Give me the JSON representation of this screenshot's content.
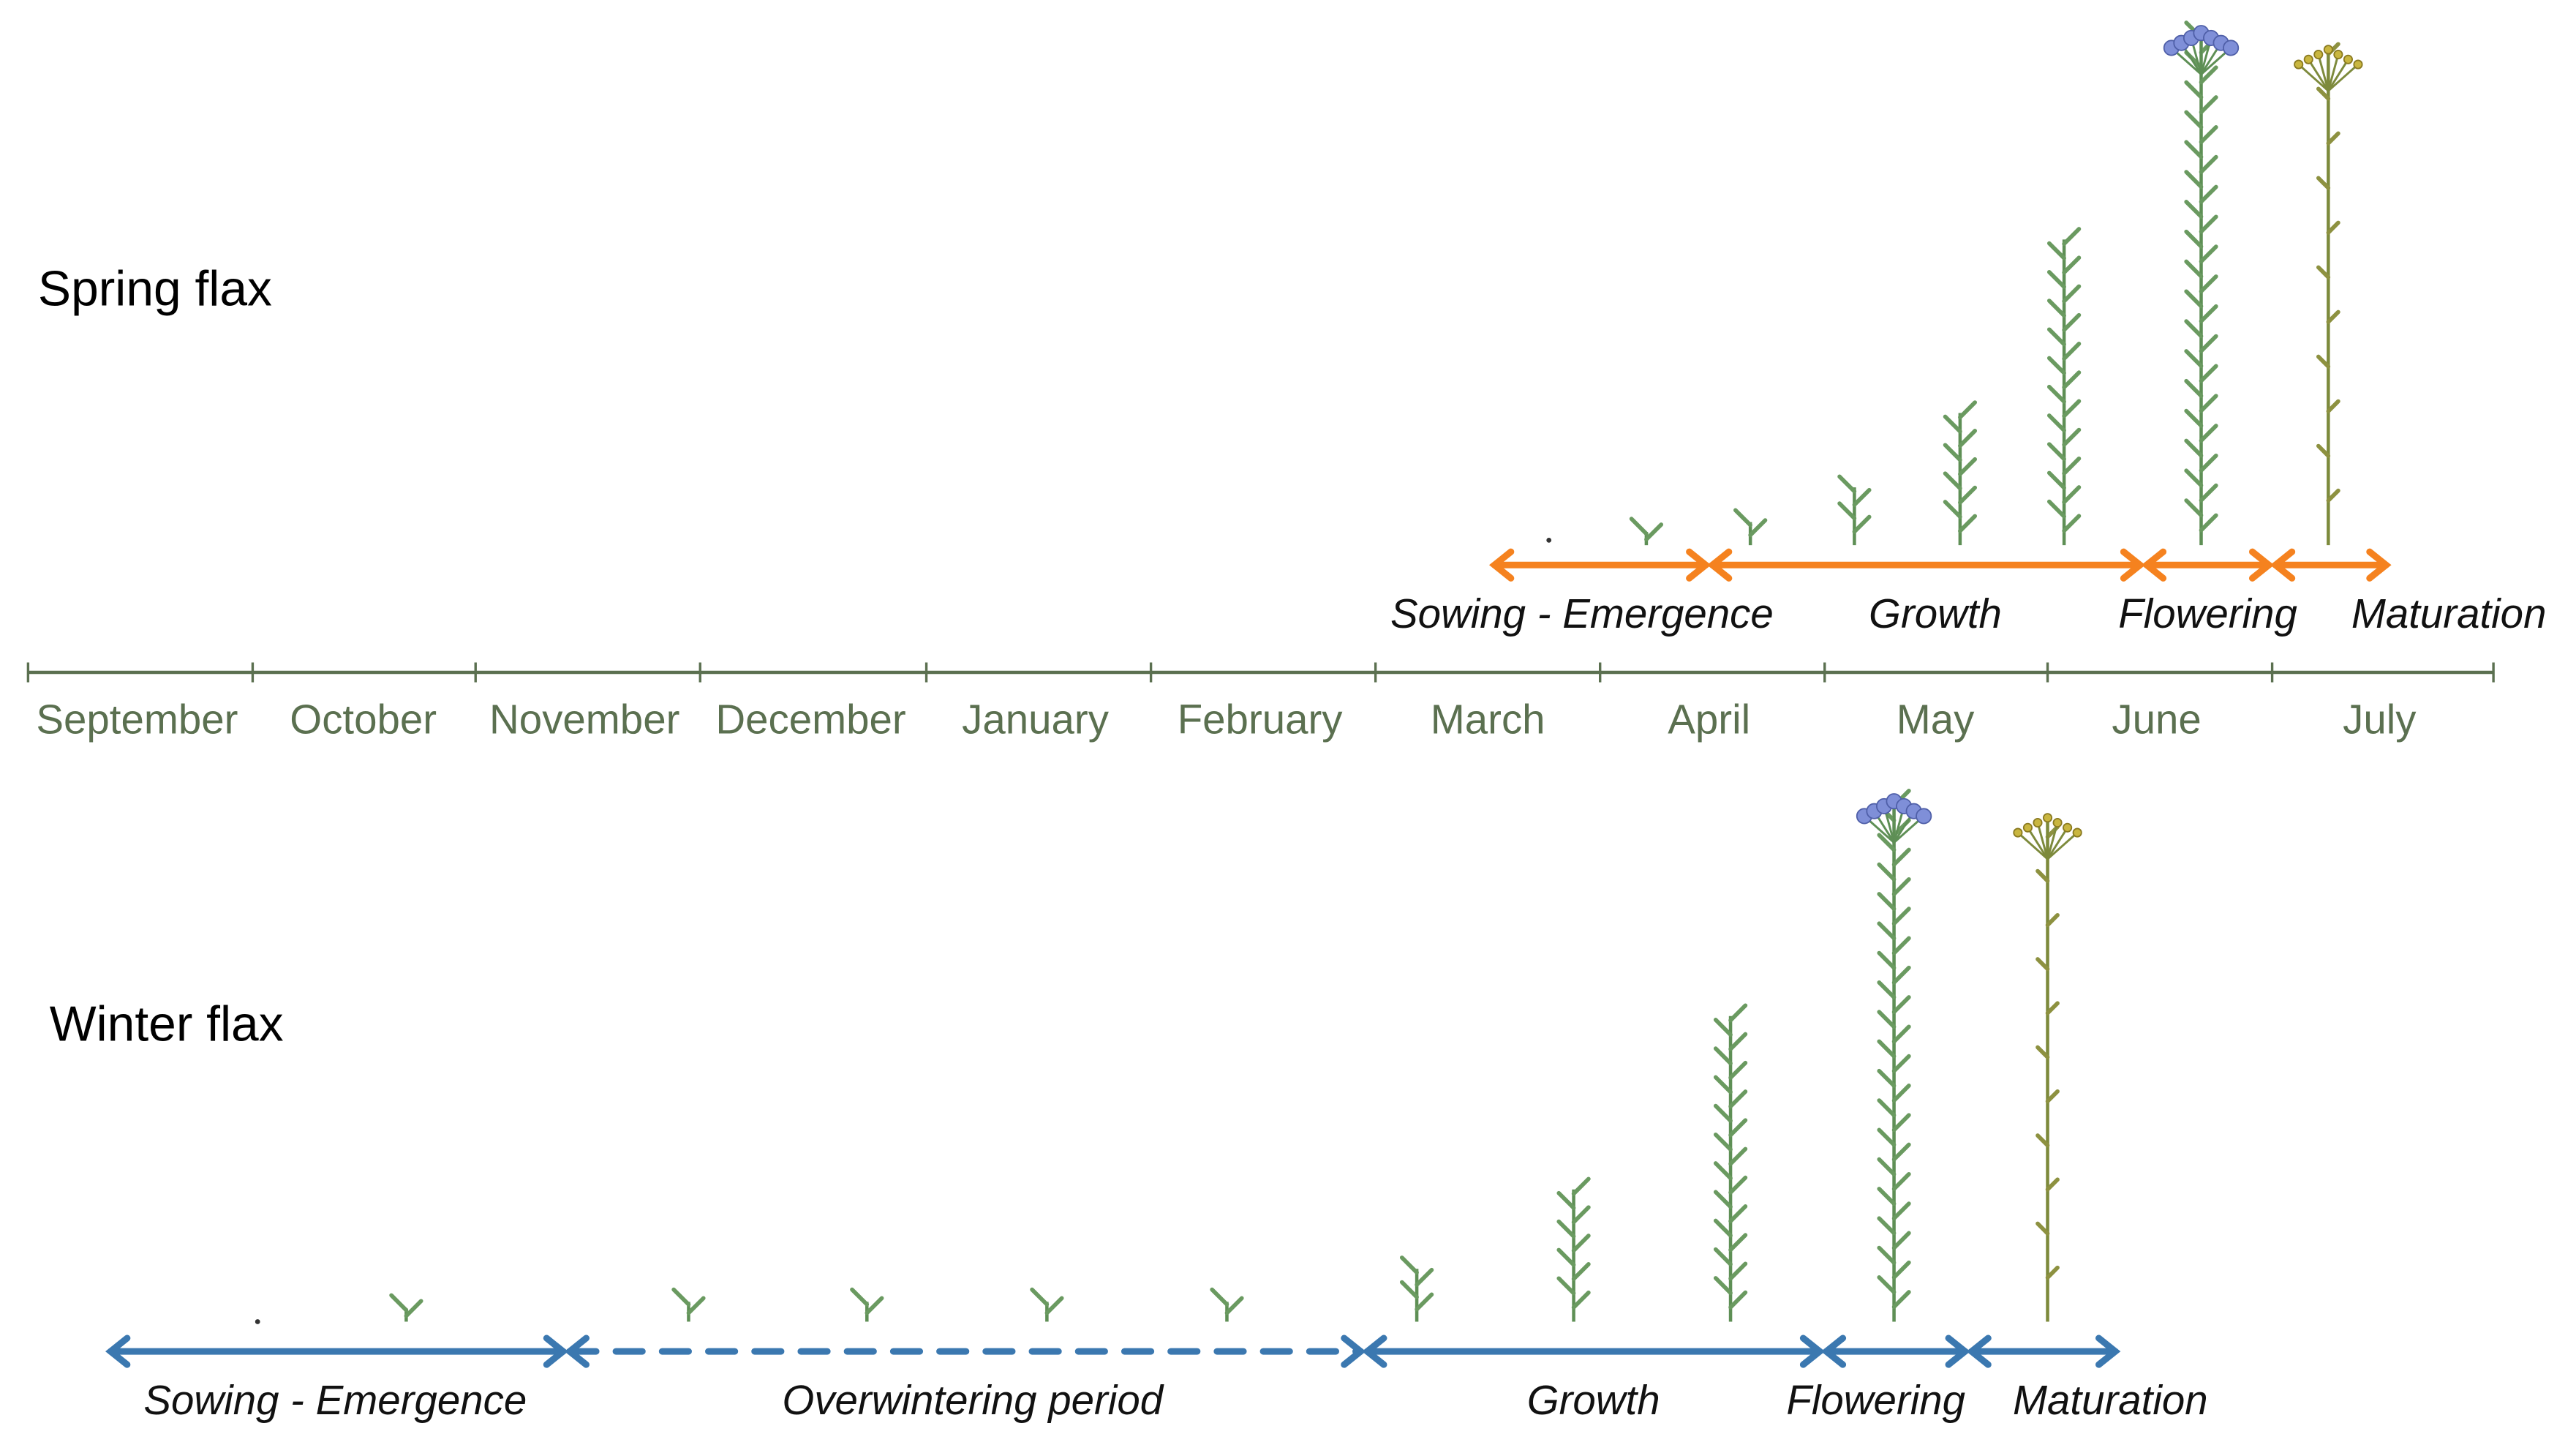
{
  "spring": {
    "title": "Spring flax",
    "phases": [
      "Sowing - Emergence",
      "Growth",
      "Flowering",
      "Maturation"
    ]
  },
  "timeline": {
    "months": [
      "September",
      "October",
      "November",
      "December",
      "January",
      "February",
      "March",
      "April",
      "May",
      "June",
      "July"
    ]
  },
  "winter": {
    "title": "Winter flax",
    "phases": [
      "Sowing - Emergence",
      "Overwintering period",
      "Growth",
      "Flowering",
      "Maturation"
    ]
  }
}
